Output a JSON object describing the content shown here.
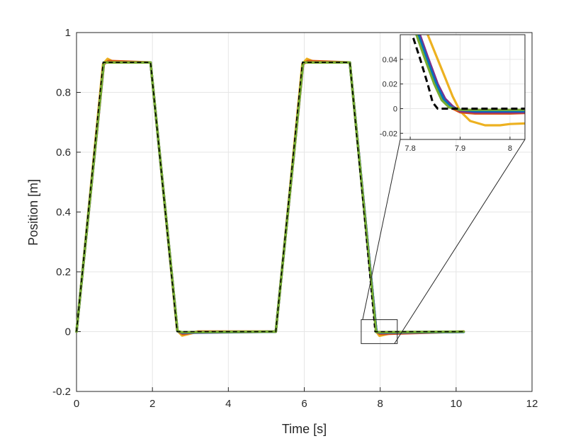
{
  "chart_data": {
    "type": "line",
    "xlabel": "Time [s]",
    "ylabel": "Position [m]",
    "xlim": [
      0,
      12
    ],
    "ylim": [
      -0.2,
      1
    ],
    "xticks": [
      "0",
      "2",
      "4",
      "6",
      "8",
      "10",
      "12"
    ],
    "yticks": [
      "-0.2",
      "0",
      "0.2",
      "0.4",
      "0.6",
      "0.8",
      "1"
    ],
    "grid": true,
    "reference": {
      "style": "black-dashed",
      "x": [
        0,
        0.7,
        1.95,
        2.65,
        5.25,
        5.95,
        7.2,
        7.86,
        10.2
      ],
      "y": [
        0,
        0.9,
        0.9,
        0,
        0,
        0.9,
        0.9,
        0,
        0
      ]
    },
    "series": [
      {
        "color": "#EDB120",
        "x": [
          0,
          0.7,
          0.82,
          1.0,
          1.95,
          2.65,
          2.78,
          3.2,
          5.25,
          5.95,
          6.07,
          6.3,
          7.2,
          7.9,
          7.98,
          8.3,
          10.2
        ],
        "y": [
          0,
          0.895,
          0.912,
          0.9,
          0.9,
          0.005,
          -0.013,
          0,
          0,
          0.895,
          0.912,
          0.9,
          0.9,
          0.0,
          -0.014,
          -0.005,
          0
        ]
      },
      {
        "color": "#D95319",
        "x": [
          0,
          0.72,
          0.85,
          1.95,
          2.66,
          2.8,
          3.2,
          5.25,
          5.97,
          6.1,
          7.2,
          7.9,
          8.0,
          10.2
        ],
        "y": [
          0,
          0.895,
          0.905,
          0.9,
          0.003,
          -0.008,
          0,
          0,
          0.895,
          0.905,
          0.9,
          0.0,
          -0.008,
          0
        ]
      },
      {
        "color": "#7E2F8E",
        "x": [
          0,
          0.72,
          1.95,
          2.66,
          2.78,
          5.25,
          5.97,
          7.2,
          7.9,
          8.0,
          10.2
        ],
        "y": [
          0,
          0.9,
          0.9,
          0.002,
          -0.004,
          0,
          0.9,
          0.9,
          -0.001,
          -0.004,
          -0.001
        ]
      },
      {
        "color": "#0072BD",
        "x": [
          0,
          0.72,
          1.95,
          2.66,
          2.78,
          5.25,
          5.97,
          7.2,
          7.9,
          8.0,
          10.2
        ],
        "y": [
          0,
          0.9,
          0.9,
          0.002,
          -0.003,
          0,
          0.9,
          0.9,
          -0.001,
          -0.003,
          -0.001
        ]
      },
      {
        "color": "#77AC30",
        "x": [
          0,
          0.72,
          1.95,
          2.66,
          2.78,
          5.25,
          5.97,
          7.2,
          7.89,
          8.0,
          10.2
        ],
        "y": [
          0,
          0.9,
          0.9,
          0.002,
          -0.002,
          0,
          0.9,
          0.9,
          -0.001,
          -0.002,
          0
        ]
      }
    ],
    "inset": {
      "xlim": [
        7.78,
        8.03
      ],
      "ylim": [
        -0.025,
        0.06
      ],
      "xticks": [
        "7.8",
        "7.9",
        "8"
      ],
      "yticks": [
        "-0.02",
        "0",
        "0.02",
        "0.04"
      ],
      "zoom_region": {
        "xlim": [
          7.5,
          8.45
        ],
        "ylim": [
          -0.04,
          0.04
        ]
      },
      "reference": {
        "x": [
          7.8,
          7.82,
          7.835,
          7.845,
          7.855,
          7.87,
          8.03
        ],
        "y": [
          0.065,
          0.04,
          0.02,
          0.005,
          0.0,
          0.0,
          0.0
        ]
      },
      "series": [
        {
          "color": "#EDB120",
          "x": [
            7.83,
            7.85,
            7.87,
            7.885,
            7.9,
            7.92,
            7.95,
            7.98,
            8.0,
            8.03
          ],
          "y": [
            0.065,
            0.045,
            0.025,
            0.01,
            -0.002,
            -0.01,
            -0.0135,
            -0.0135,
            -0.0125,
            -0.012
          ]
        },
        {
          "color": "#D95319",
          "x": [
            7.81,
            7.83,
            7.85,
            7.865,
            7.88,
            7.9,
            7.93,
            7.96,
            8.0,
            8.03
          ],
          "y": [
            0.065,
            0.042,
            0.02,
            0.008,
            0.001,
            -0.003,
            -0.004,
            -0.004,
            -0.004,
            -0.0035
          ]
        },
        {
          "color": "#7E2F8E",
          "x": [
            7.815,
            7.835,
            7.855,
            7.87,
            7.885,
            7.9,
            7.93,
            7.96,
            8.0,
            8.03
          ],
          "y": [
            0.065,
            0.042,
            0.02,
            0.008,
            0.002,
            -0.002,
            -0.003,
            -0.003,
            -0.003,
            -0.003
          ]
        },
        {
          "color": "#0072BD",
          "x": [
            7.812,
            7.832,
            7.852,
            7.868,
            7.883,
            7.9,
            7.93,
            7.96,
            8.0,
            8.03
          ],
          "y": [
            0.065,
            0.042,
            0.02,
            0.007,
            0.001,
            -0.001,
            -0.002,
            -0.002,
            -0.002,
            -0.002
          ]
        },
        {
          "color": "#77AC30",
          "x": [
            7.808,
            7.828,
            7.848,
            7.863,
            7.878,
            7.9,
            7.93,
            7.96,
            8.0,
            8.03
          ],
          "y": [
            0.065,
            0.042,
            0.02,
            0.007,
            0.001,
            -0.001,
            -0.001,
            -0.001,
            -0.001,
            -0.001
          ]
        }
      ]
    }
  }
}
